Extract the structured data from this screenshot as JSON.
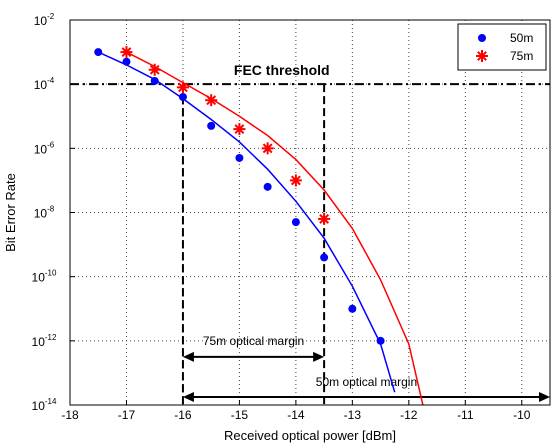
{
  "chart_data": {
    "type": "scatter",
    "xlabel": "Received optical power [dBm]",
    "ylabel": "Bit Error Rate",
    "xlim": [
      -18,
      -9.5
    ],
    "ylim_exponent": [
      -14,
      -2
    ],
    "y_scale": "log",
    "grid": true,
    "legend_position": "top-right",
    "x_ticks": [
      "-18",
      "-17",
      "-16",
      "-15",
      "-14",
      "-13",
      "-12",
      "-11",
      "-10"
    ],
    "x_tick_values": [
      -18,
      -17,
      -16,
      -15,
      -14,
      -13,
      -12,
      -11,
      -10
    ],
    "y_tick_exponents": [
      -2,
      -4,
      -6,
      -8,
      -10,
      -12,
      -14
    ],
    "y_tick_base": "10",
    "y_tick_exponent_labels": [
      "-2",
      "-4",
      "-6",
      "-8",
      "-10",
      "-12",
      "-14"
    ],
    "series": [
      {
        "name": "50m",
        "color": "#0000ff",
        "marker": "dot",
        "x": [
          -17.5,
          -17,
          -16.5,
          -16,
          -15.5,
          -15,
          -14.5,
          -14,
          -13.5,
          -13,
          -12.5
        ],
        "log10_y": [
          -3.0,
          -3.3,
          -3.9,
          -4.4,
          -5.3,
          -6.3,
          -7.2,
          -8.3,
          -9.4,
          -11.0,
          -12.0
        ],
        "fit_x": [
          -17.5,
          -17,
          -16.5,
          -16,
          -15.5,
          -15,
          -14.5,
          -14,
          -13.5,
          -13,
          -12.5,
          -12.25
        ],
        "fit_log10_y": [
          -3.0,
          -3.4,
          -3.85,
          -4.45,
          -5.1,
          -5.8,
          -6.65,
          -7.65,
          -8.8,
          -10.3,
          -12.1,
          -13.6
        ]
      },
      {
        "name": "75m",
        "color": "#ff0000",
        "marker": "asterisk",
        "x": [
          -17,
          -16.5,
          -16,
          -15.5,
          -15,
          -14.5,
          -14,
          -13.5
        ],
        "log10_y": [
          -3.0,
          -3.55,
          -4.1,
          -4.5,
          -5.4,
          -6.0,
          -7.0,
          -8.2
        ],
        "fit_x": [
          -17,
          -16.5,
          -16,
          -15.5,
          -15,
          -14.5,
          -14,
          -13.5,
          -13,
          -12.5,
          -12,
          -11.75
        ],
        "fit_log10_y": [
          -3.0,
          -3.45,
          -3.95,
          -4.45,
          -5.0,
          -5.6,
          -6.35,
          -7.3,
          -8.5,
          -10.1,
          -12.1,
          -14.0
        ]
      }
    ],
    "annotations": {
      "fec_threshold": {
        "label": "FEC threshold",
        "log10_y": -4
      },
      "vertical_markers": [
        -16,
        -13.5
      ],
      "margin_75m": {
        "label": "75m optical margin",
        "x_from": -16,
        "x_to": -13.5,
        "log10_y": -12.5
      },
      "margin_50m": {
        "label": "50m optical margin",
        "x_from": -16,
        "x_to": -9.5,
        "log10_y": -13.75
      }
    }
  }
}
